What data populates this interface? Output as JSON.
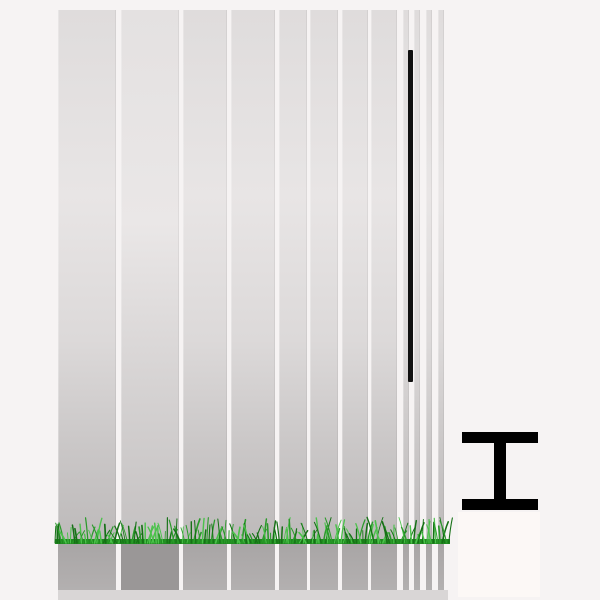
{
  "scene": {
    "background_color": "#f6f3f3",
    "panel_color": "#e2dfdf",
    "rod_color": "#111111",
    "grass_color": "#2e9e2e",
    "beam_color": "#000000",
    "panel_count": 12
  },
  "icons": {
    "beam": "i-beam-icon",
    "grass": "grass-strip-icon"
  }
}
